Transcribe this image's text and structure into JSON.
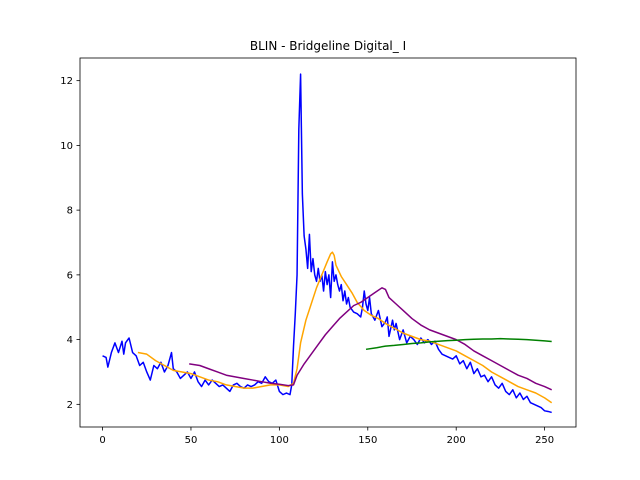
{
  "chart_data": {
    "type": "line",
    "title": "BLIN - Bridgeline Digital_ I",
    "xlabel": "",
    "ylabel": "",
    "xlim": [
      -12.75,
      267.75
    ],
    "ylim": [
      1.3,
      12.7
    ],
    "xticks": [
      0,
      50,
      100,
      150,
      200,
      250
    ],
    "yticks": [
      2,
      4,
      6,
      8,
      10,
      12
    ],
    "grid": false,
    "legend": "none",
    "series": [
      {
        "color": "#0000ff",
        "points": [
          [
            0,
            3.5
          ],
          [
            2,
            3.45
          ],
          [
            3,
            3.15
          ],
          [
            5,
            3.6
          ],
          [
            7,
            3.9
          ],
          [
            9,
            3.6
          ],
          [
            11,
            3.95
          ],
          [
            12,
            3.55
          ],
          [
            13,
            3.9
          ],
          [
            15,
            4.05
          ],
          [
            17,
            3.6
          ],
          [
            19,
            3.5
          ],
          [
            21,
            3.2
          ],
          [
            23,
            3.3
          ],
          [
            25,
            3.0
          ],
          [
            27,
            2.75
          ],
          [
            29,
            3.2
          ],
          [
            31,
            3.1
          ],
          [
            33,
            3.3
          ],
          [
            35,
            3.0
          ],
          [
            37,
            3.2
          ],
          [
            39,
            3.6
          ],
          [
            40,
            3.1
          ],
          [
            42,
            3.0
          ],
          [
            44,
            2.8
          ],
          [
            46,
            2.9
          ],
          [
            48,
            3.0
          ],
          [
            50,
            2.8
          ],
          [
            52,
            3.0
          ],
          [
            54,
            2.7
          ],
          [
            56,
            2.55
          ],
          [
            58,
            2.75
          ],
          [
            60,
            2.6
          ],
          [
            62,
            2.75
          ],
          [
            64,
            2.65
          ],
          [
            66,
            2.55
          ],
          [
            68,
            2.6
          ],
          [
            70,
            2.5
          ],
          [
            72,
            2.4
          ],
          [
            74,
            2.6
          ],
          [
            76,
            2.65
          ],
          [
            78,
            2.55
          ],
          [
            80,
            2.5
          ],
          [
            82,
            2.6
          ],
          [
            84,
            2.55
          ],
          [
            86,
            2.6
          ],
          [
            88,
            2.7
          ],
          [
            90,
            2.65
          ],
          [
            92,
            2.85
          ],
          [
            94,
            2.7
          ],
          [
            96,
            2.65
          ],
          [
            98,
            2.75
          ],
          [
            100,
            2.4
          ],
          [
            102,
            2.3
          ],
          [
            104,
            2.35
          ],
          [
            106,
            2.3
          ],
          [
            107,
            2.6
          ],
          [
            108,
            3.8
          ],
          [
            109,
            4.8
          ],
          [
            110,
            6.0
          ],
          [
            111,
            10.5
          ],
          [
            112,
            12.2
          ],
          [
            113,
            8.5
          ],
          [
            114,
            7.2
          ],
          [
            115,
            6.8
          ],
          [
            116,
            6.2
          ],
          [
            117,
            7.25
          ],
          [
            118,
            6.1
          ],
          [
            119,
            6.5
          ],
          [
            120,
            6.0
          ],
          [
            121,
            5.8
          ],
          [
            122,
            6.2
          ],
          [
            123,
            5.8
          ],
          [
            124,
            6.0
          ],
          [
            125,
            5.5
          ],
          [
            126,
            6.1
          ],
          [
            127,
            5.7
          ],
          [
            128,
            6.0
          ],
          [
            129,
            5.3
          ],
          [
            130,
            6.4
          ],
          [
            131,
            5.8
          ],
          [
            132,
            6.0
          ],
          [
            133,
            5.7
          ],
          [
            134,
            5.5
          ],
          [
            135,
            5.7
          ],
          [
            136,
            5.2
          ],
          [
            137,
            5.5
          ],
          [
            138,
            5.1
          ],
          [
            139,
            5.3
          ],
          [
            140,
            5.0
          ],
          [
            142,
            4.85
          ],
          [
            144,
            4.8
          ],
          [
            146,
            4.7
          ],
          [
            147,
            5.0
          ],
          [
            148,
            5.5
          ],
          [
            149,
            5.1
          ],
          [
            150,
            4.9
          ],
          [
            151,
            5.3
          ],
          [
            152,
            4.8
          ],
          [
            154,
            4.6
          ],
          [
            156,
            4.9
          ],
          [
            158,
            4.4
          ],
          [
            160,
            4.55
          ],
          [
            161,
            4.7
          ],
          [
            162,
            4.1
          ],
          [
            164,
            4.6
          ],
          [
            165,
            4.3
          ],
          [
            166,
            4.5
          ],
          [
            168,
            4.0
          ],
          [
            170,
            4.3
          ],
          [
            172,
            3.9
          ],
          [
            174,
            4.1
          ],
          [
            176,
            4.0
          ],
          [
            178,
            3.85
          ],
          [
            180,
            4.05
          ],
          [
            182,
            3.9
          ],
          [
            184,
            4.0
          ],
          [
            186,
            3.85
          ],
          [
            188,
            3.95
          ],
          [
            190,
            3.7
          ],
          [
            192,
            3.55
          ],
          [
            194,
            3.5
          ],
          [
            196,
            3.45
          ],
          [
            198,
            3.4
          ],
          [
            200,
            3.5
          ],
          [
            202,
            3.25
          ],
          [
            204,
            3.35
          ],
          [
            206,
            3.1
          ],
          [
            208,
            3.3
          ],
          [
            210,
            2.95
          ],
          [
            212,
            3.1
          ],
          [
            214,
            2.85
          ],
          [
            216,
            2.9
          ],
          [
            218,
            2.7
          ],
          [
            220,
            2.85
          ],
          [
            222,
            2.6
          ],
          [
            224,
            2.5
          ],
          [
            226,
            2.65
          ],
          [
            228,
            2.4
          ],
          [
            230,
            2.3
          ],
          [
            232,
            2.45
          ],
          [
            234,
            2.2
          ],
          [
            236,
            2.35
          ],
          [
            238,
            2.15
          ],
          [
            240,
            2.25
          ],
          [
            242,
            2.05
          ],
          [
            244,
            2.0
          ],
          [
            246,
            1.95
          ],
          [
            248,
            1.9
          ],
          [
            250,
            1.8
          ],
          [
            252,
            1.78
          ],
          [
            254,
            1.75
          ]
        ]
      },
      {
        "color": "#ffa500",
        "points": [
          [
            20,
            3.6
          ],
          [
            25,
            3.55
          ],
          [
            30,
            3.35
          ],
          [
            35,
            3.2
          ],
          [
            40,
            3.05
          ],
          [
            45,
            3.0
          ],
          [
            50,
            2.95
          ],
          [
            55,
            2.85
          ],
          [
            60,
            2.75
          ],
          [
            65,
            2.7
          ],
          [
            70,
            2.6
          ],
          [
            75,
            2.55
          ],
          [
            80,
            2.5
          ],
          [
            85,
            2.5
          ],
          [
            90,
            2.55
          ],
          [
            95,
            2.6
          ],
          [
            100,
            2.6
          ],
          [
            105,
            2.55
          ],
          [
            108,
            2.65
          ],
          [
            110,
            3.1
          ],
          [
            112,
            3.9
          ],
          [
            115,
            4.6
          ],
          [
            118,
            5.1
          ],
          [
            121,
            5.6
          ],
          [
            124,
            6.0
          ],
          [
            127,
            6.4
          ],
          [
            129,
            6.65
          ],
          [
            130,
            6.7
          ],
          [
            131,
            6.6
          ],
          [
            132,
            6.3
          ],
          [
            135,
            5.95
          ],
          [
            138,
            5.7
          ],
          [
            141,
            5.45
          ],
          [
            144,
            5.15
          ],
          [
            148,
            4.9
          ],
          [
            152,
            4.75
          ],
          [
            156,
            4.65
          ],
          [
            160,
            4.5
          ],
          [
            165,
            4.35
          ],
          [
            170,
            4.2
          ],
          [
            175,
            4.1
          ],
          [
            180,
            4.0
          ],
          [
            185,
            3.95
          ],
          [
            190,
            3.85
          ],
          [
            195,
            3.75
          ],
          [
            200,
            3.65
          ],
          [
            205,
            3.5
          ],
          [
            210,
            3.35
          ],
          [
            215,
            3.2
          ],
          [
            220,
            3.0
          ],
          [
            225,
            2.85
          ],
          [
            230,
            2.7
          ],
          [
            235,
            2.55
          ],
          [
            240,
            2.45
          ],
          [
            245,
            2.35
          ],
          [
            250,
            2.2
          ],
          [
            254,
            2.05
          ]
        ]
      },
      {
        "color": "#800080",
        "points": [
          [
            49,
            3.25
          ],
          [
            55,
            3.2
          ],
          [
            60,
            3.1
          ],
          [
            65,
            3.0
          ],
          [
            70,
            2.9
          ],
          [
            75,
            2.85
          ],
          [
            80,
            2.8
          ],
          [
            85,
            2.75
          ],
          [
            90,
            2.7
          ],
          [
            95,
            2.65
          ],
          [
            100,
            2.62
          ],
          [
            105,
            2.58
          ],
          [
            108,
            2.6
          ],
          [
            110,
            2.9
          ],
          [
            114,
            3.25
          ],
          [
            118,
            3.55
          ],
          [
            122,
            3.85
          ],
          [
            126,
            4.15
          ],
          [
            130,
            4.4
          ],
          [
            134,
            4.65
          ],
          [
            138,
            4.85
          ],
          [
            142,
            5.05
          ],
          [
            146,
            5.15
          ],
          [
            150,
            5.3
          ],
          [
            154,
            5.45
          ],
          [
            158,
            5.6
          ],
          [
            160,
            5.55
          ],
          [
            162,
            5.3
          ],
          [
            166,
            5.1
          ],
          [
            170,
            4.9
          ],
          [
            175,
            4.65
          ],
          [
            180,
            4.45
          ],
          [
            185,
            4.3
          ],
          [
            190,
            4.2
          ],
          [
            195,
            4.1
          ],
          [
            200,
            4.0
          ],
          [
            205,
            3.85
          ],
          [
            210,
            3.65
          ],
          [
            215,
            3.5
          ],
          [
            220,
            3.35
          ],
          [
            225,
            3.2
          ],
          [
            230,
            3.05
          ],
          [
            235,
            2.9
          ],
          [
            240,
            2.8
          ],
          [
            245,
            2.65
          ],
          [
            250,
            2.55
          ],
          [
            254,
            2.45
          ]
        ]
      },
      {
        "color": "#008000",
        "points": [
          [
            149,
            3.7
          ],
          [
            155,
            3.75
          ],
          [
            160,
            3.8
          ],
          [
            165,
            3.82
          ],
          [
            170,
            3.85
          ],
          [
            175,
            3.88
          ],
          [
            180,
            3.9
          ],
          [
            185,
            3.93
          ],
          [
            190,
            3.95
          ],
          [
            195,
            3.97
          ],
          [
            200,
            3.98
          ],
          [
            205,
            4.0
          ],
          [
            210,
            4.01
          ],
          [
            215,
            4.02
          ],
          [
            220,
            4.02
          ],
          [
            225,
            4.03
          ],
          [
            230,
            4.02
          ],
          [
            235,
            4.01
          ],
          [
            240,
            4.0
          ],
          [
            245,
            3.98
          ],
          [
            250,
            3.96
          ],
          [
            254,
            3.94
          ]
        ]
      }
    ]
  }
}
